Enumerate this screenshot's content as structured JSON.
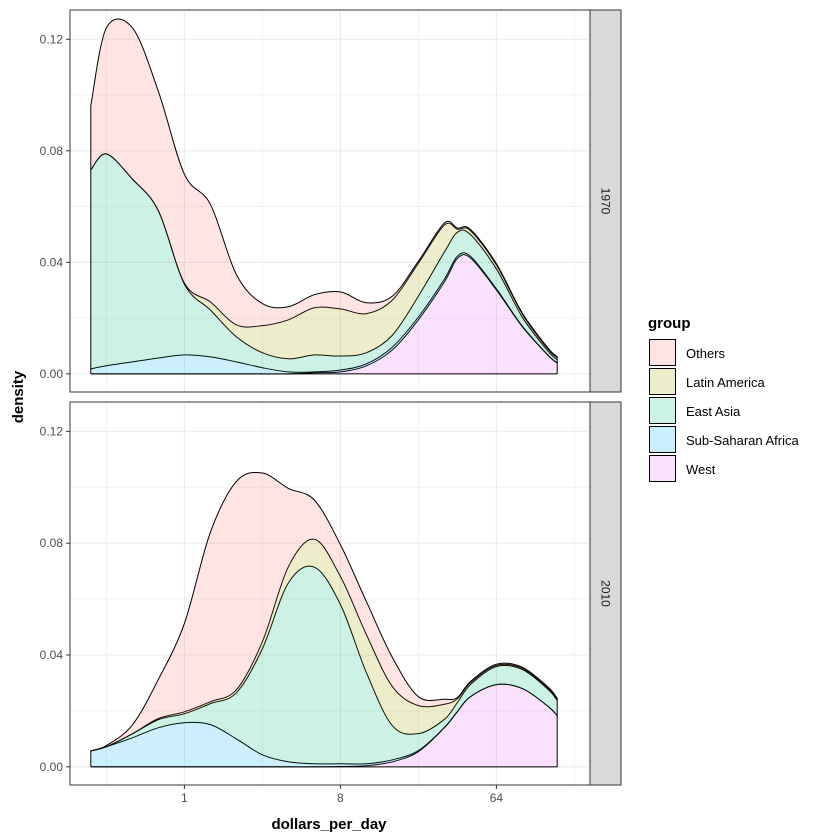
{
  "chart_data": {
    "type": "area",
    "subtype": "stacked-density",
    "xlabel": "dollars_per_day",
    "ylabel": "density",
    "x_scale": "log2",
    "x_ticks": [
      {
        "value": 1,
        "label": "1"
      },
      {
        "value": 8,
        "label": "8"
      },
      {
        "value": 64,
        "label": "64"
      }
    ],
    "y_ticks": [
      {
        "value": 0.0,
        "label": "0.00"
      },
      {
        "value": 0.04,
        "label": "0.04"
      },
      {
        "value": 0.08,
        "label": "0.08"
      },
      {
        "value": 0.12,
        "label": "0.12"
      }
    ],
    "ylim": [
      -0.0065,
      0.1305
    ],
    "xlim_log2": [
      -2.2,
      7.8
    ],
    "grid": true,
    "legend": {
      "title": "group",
      "position": "right",
      "entries": [
        {
          "name": "Others",
          "color": "#F8766D"
        },
        {
          "name": "Latin America",
          "color": "#A3A500"
        },
        {
          "name": "East Asia",
          "color": "#00BF7D"
        },
        {
          "name": "Sub-Saharan Africa",
          "color": "#00B0F6"
        },
        {
          "name": "West",
          "color": "#E76BF3"
        }
      ]
    },
    "fill_alpha": 0.2,
    "stack_order_bottom_to_top": [
      "West",
      "Sub-Saharan Africa",
      "East Asia",
      "Latin America",
      "Others"
    ],
    "x_log2": [
      -1.8,
      -1.5,
      -1.0,
      -0.5,
      0.0,
      0.5,
      1.0,
      1.5,
      2.0,
      2.5,
      3.0,
      3.5,
      4.0,
      4.5,
      5.0,
      5.25,
      5.5,
      6.0,
      6.5,
      7.0,
      7.17
    ],
    "panels": [
      {
        "label": "1970",
        "series": [
          {
            "name": "West",
            "values": [
              0,
              0,
              0,
              0,
              0,
              0,
              0,
              0,
              0,
              0.0004,
              0.0007,
              0.0029,
              0.0086,
              0.0194,
              0.033,
              0.0414,
              0.0416,
              0.0301,
              0.0169,
              0.0065,
              0.0039
            ]
          },
          {
            "name": "Sub-Saharan Africa",
            "values": [
              0.0018,
              0.0029,
              0.0043,
              0.0057,
              0.0068,
              0.0061,
              0.0043,
              0.0022,
              0.0007,
              0.0003,
              0.0007,
              0.0007,
              0.001,
              0.001,
              0.001,
              0.0008,
              0.0006,
              0.0004,
              0.0002,
              0.0001,
              0.0001
            ]
          },
          {
            "name": "East Asia",
            "values": [
              0.0714,
              0.076,
              0.0656,
              0.0528,
              0.0254,
              0.0168,
              0.009,
              0.0054,
              0.0047,
              0.0061,
              0.005,
              0.004,
              0.0043,
              0.0075,
              0.0097,
              0.0086,
              0.0078,
              0.0072,
              0.0032,
              0.0014,
              0.0011
            ]
          },
          {
            "name": "Latin America",
            "values": [
              0,
              0,
              0,
              0,
              0.0004,
              0.0029,
              0.0043,
              0.0097,
              0.014,
              0.0169,
              0.0169,
              0.014,
              0.0126,
              0.0118,
              0.0097,
              0.0011,
              0.0014,
              0.0014,
              0.0011,
              0.0007,
              0.0007
            ]
          },
          {
            "name": "Others",
            "values": [
              0.023,
              0.0452,
              0.0542,
              0.0428,
              0.039,
              0.035,
              0.018,
              0.0079,
              0.0047,
              0.0047,
              0.0061,
              0.0039,
              0.0014,
              0.0007,
              0.0007,
              0.0004,
              0.0004,
              0.0004,
              0.0004,
              0.0004,
              0.0004
            ]
          }
        ]
      },
      {
        "label": "2010",
        "series": [
          {
            "name": "West",
            "values": [
              0,
              0,
              0,
              0,
              0,
              0,
              0,
              0,
              0,
              0,
              0.0001,
              0.0004,
              0.0018,
              0.0054,
              0.014,
              0.0197,
              0.0251,
              0.0294,
              0.028,
              0.0215,
              0.0183
            ]
          },
          {
            "name": "Sub-Saharan Africa",
            "values": [
              0.0057,
              0.0072,
              0.0104,
              0.014,
              0.0158,
              0.0151,
              0.01,
              0.0043,
              0.0018,
              0.0011,
              0.001,
              0.0007,
              0.0007,
              0.0004,
              0.0001,
              0.0001,
              0,
              0,
              0,
              0,
              0
            ]
          },
          {
            "name": "East Asia",
            "values": [
              0,
              0,
              0.0014,
              0.0029,
              0.0032,
              0.0075,
              0.0165,
              0.038,
              0.064,
              0.0703,
              0.057,
              0.0326,
              0.0122,
              0.0061,
              0.0029,
              0.0032,
              0.0043,
              0.0065,
              0.0068,
              0.0061,
              0.0054
            ]
          },
          {
            "name": "Latin America",
            "values": [
              0,
              0,
              0,
              0.0004,
              0.0007,
              0.0007,
              0.0011,
              0.0025,
              0.0058,
              0.01,
              0.01,
              0.0136,
              0.014,
              0.01,
              0.0054,
              0.0014,
              0.0007,
              0.0004,
              0.0004,
              0.0004,
              0.0004
            ]
          },
          {
            "name": "Others",
            "values": [
              0,
              0.0004,
              0.0032,
              0.014,
              0.0316,
              0.0606,
              0.0745,
              0.0603,
              0.028,
              0.014,
              0.0114,
              0.0118,
              0.0104,
              0.0032,
              0.0018,
              0.0004,
              0.0004,
              0.0004,
              0.0004,
              0.0004,
              0.0004
            ]
          }
        ]
      }
    ]
  }
}
